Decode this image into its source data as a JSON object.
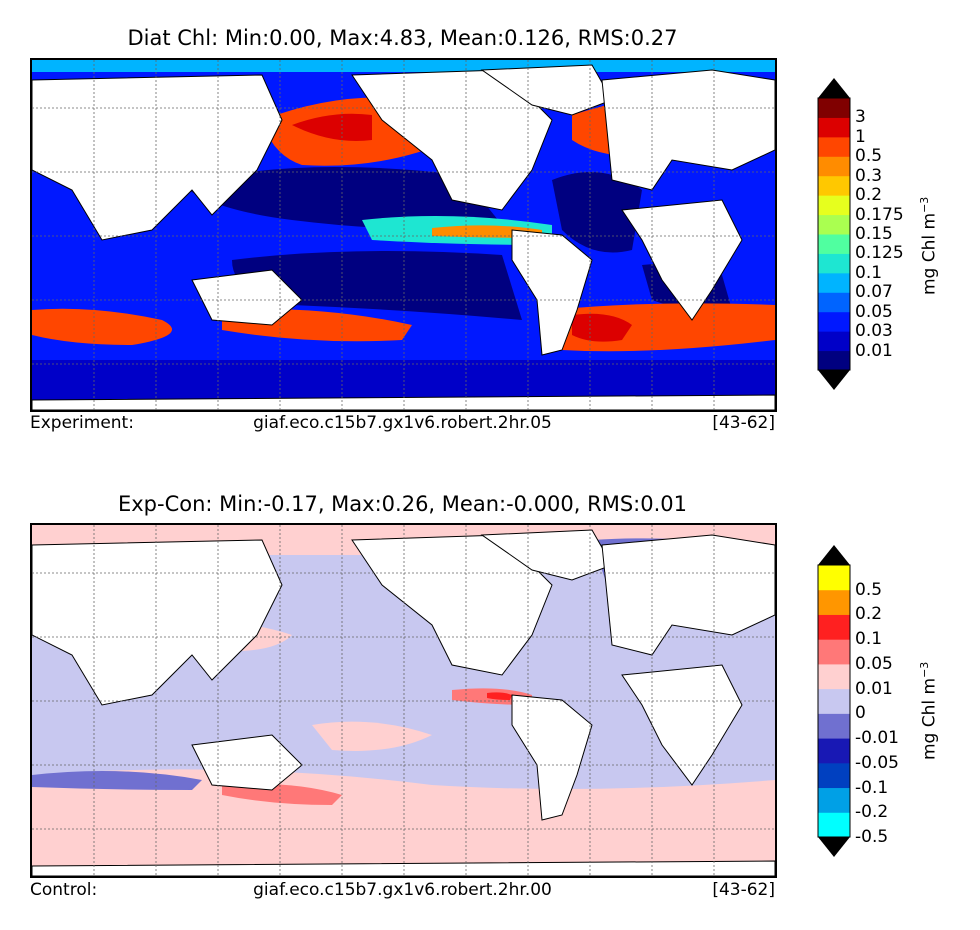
{
  "top_panel": {
    "title": "Diat Chl: Min:0.00, Max:4.83, Mean:0.126, RMS:0.27",
    "footer_label": "Experiment:",
    "footer_run": "giaf.eco.c15b7.gx1v6.robert.2hr.05",
    "footer_years": "[43-62]",
    "colorbar_label": "mg Chl m",
    "colorbar_label_exp": "−3",
    "ticks": [
      "3",
      "1",
      "0.5",
      "0.3",
      "0.2",
      "0.175",
      "0.15",
      "0.125",
      "0.1",
      "0.07",
      "0.05",
      "0.03",
      "0.01"
    ],
    "colors": [
      "#000080",
      "#0000c8",
      "#0018ff",
      "#0064ff",
      "#00b4ff",
      "#1ee6d2",
      "#50ffa0",
      "#aaff50",
      "#e6ff1e",
      "#ffc800",
      "#ff8c00",
      "#ff4600",
      "#dc0000",
      "#800000"
    ],
    "extend_high_color": "#000000",
    "extend_low_color": "#000000"
  },
  "bottom_panel": {
    "title": "Exp-Con: Min:-0.17, Max:0.26, Mean:-0.000, RMS:0.01",
    "footer_label": "Control:",
    "footer_run": "giaf.eco.c15b7.gx1v6.robert.2hr.00",
    "footer_years": "[43-62]",
    "colorbar_label": "mg Chl m",
    "colorbar_label_exp": "−3",
    "ticks": [
      "0.5",
      "0.2",
      "0.1",
      "0.05",
      "0.01",
      "0",
      "-0.01",
      "-0.05",
      "-0.1",
      "-0.2",
      "-0.5"
    ],
    "colors": [
      "#00ffff",
      "#00a0e6",
      "#0040c0",
      "#1818b4",
      "#7070d0",
      "#c8c8f0",
      "#ffd0d0",
      "#ff7878",
      "#ff2020",
      "#ff9600",
      "#ffff00"
    ],
    "extend_high_color": "#000000",
    "extend_low_color": "#000000"
  },
  "map_colors": {
    "land": "#ffffff",
    "ocean_top": "#0018ff",
    "ocean_top_deep": "#000080",
    "ocean_bottom": "#c8c8f0",
    "gridline": "#666666"
  }
}
